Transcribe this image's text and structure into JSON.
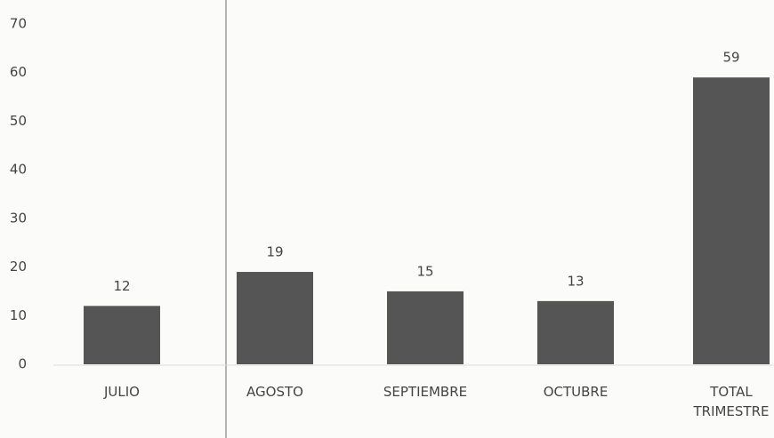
{
  "chart_data": {
    "type": "bar",
    "categories": [
      "JULIO",
      "AGOSTO",
      "SEPTIEMBRE",
      "OCTUBRE",
      "TOTAL TRIMESTRE"
    ],
    "values": [
      12,
      19,
      15,
      13,
      59
    ],
    "color": "#555555",
    "ylim": [
      0,
      70
    ],
    "yticks": [
      0,
      10,
      20,
      30,
      40,
      50,
      60,
      70
    ],
    "grid": false
  }
}
